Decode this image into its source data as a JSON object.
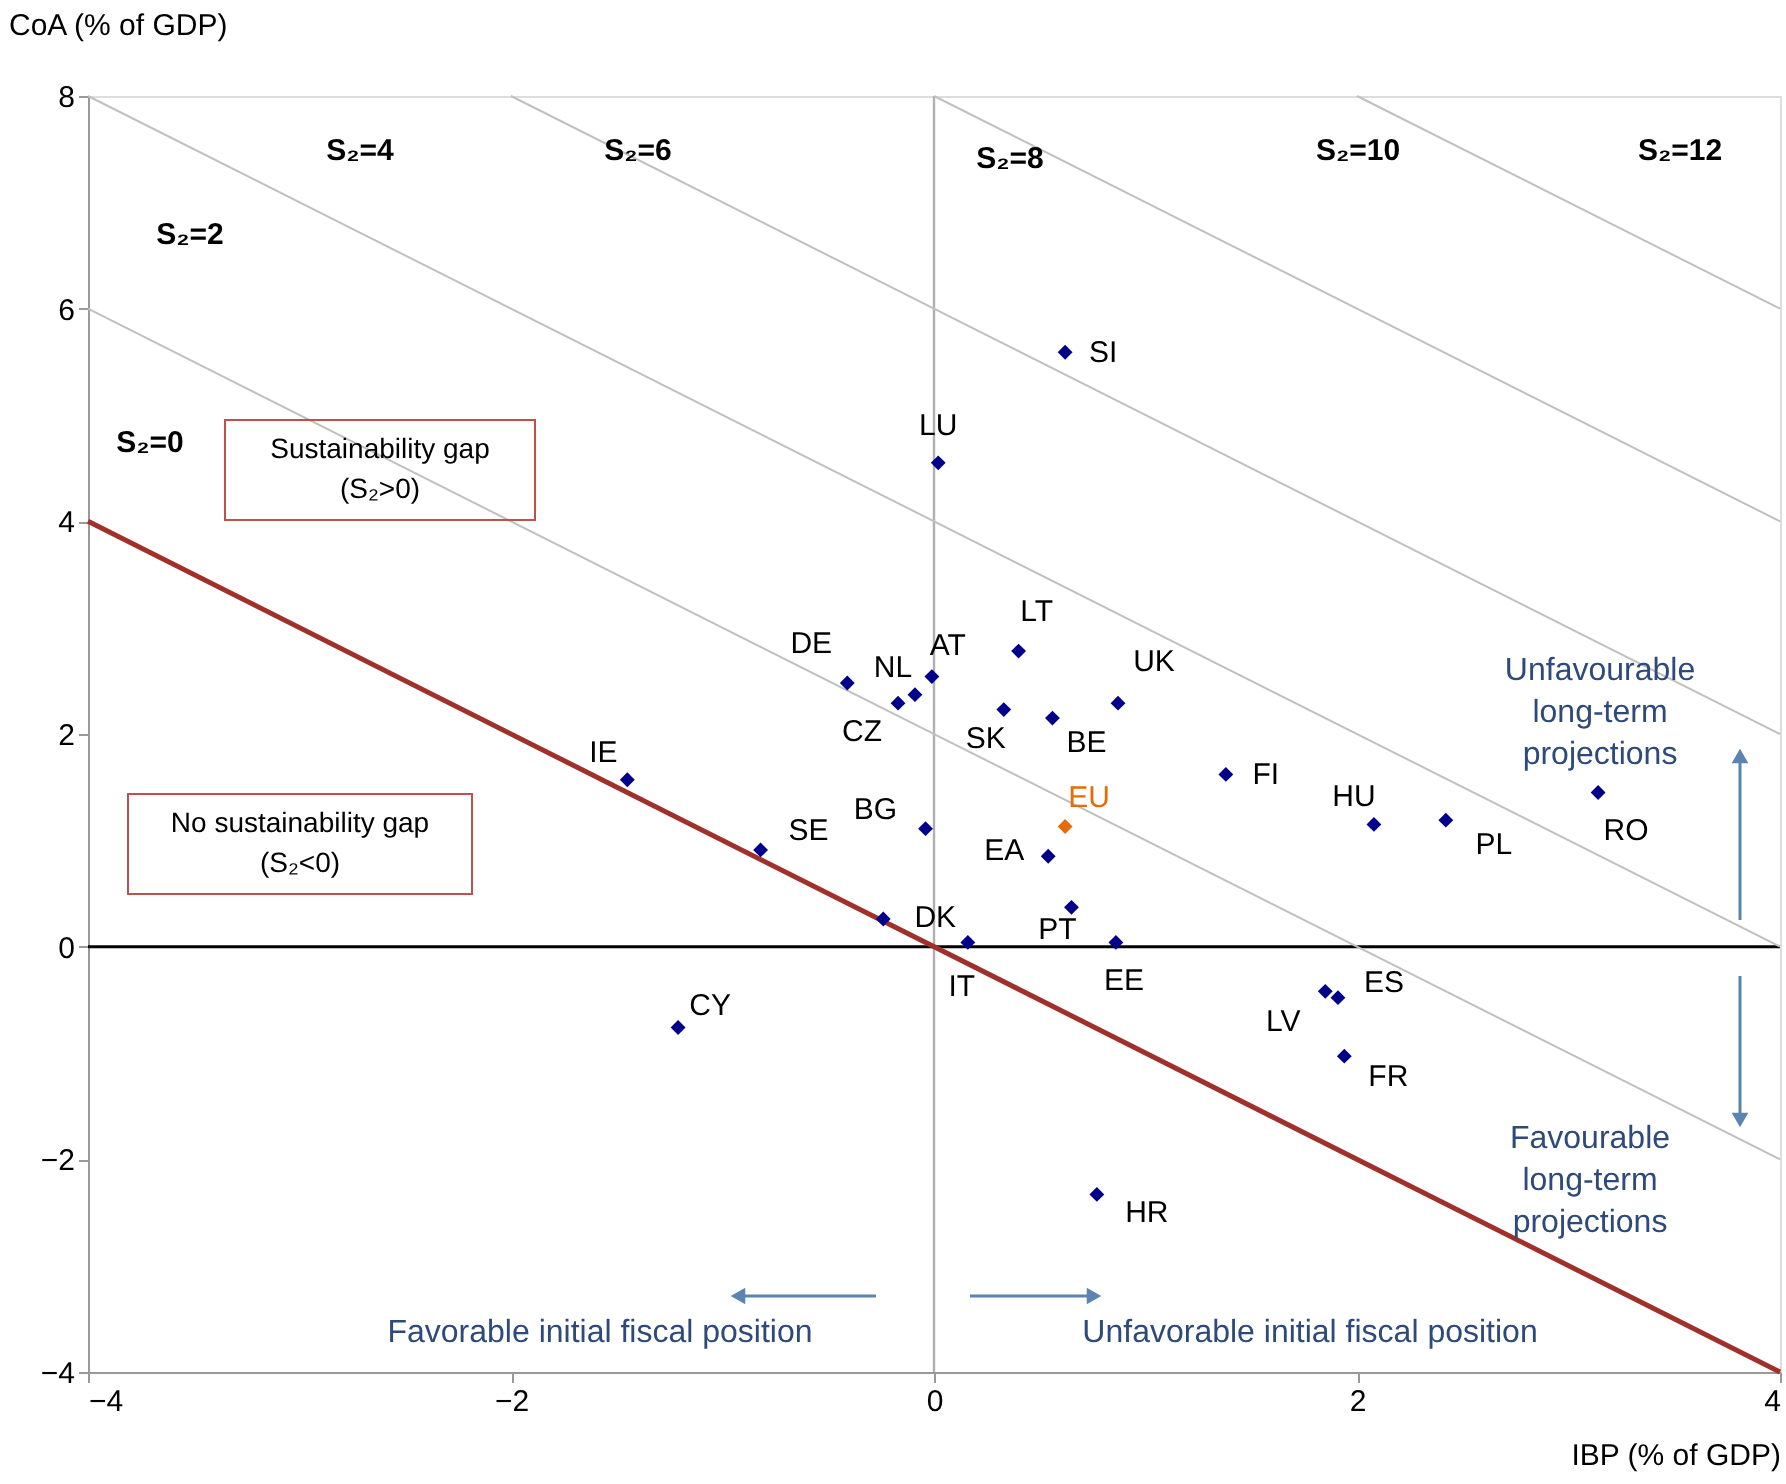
{
  "chart_data": {
    "type": "scatter",
    "xlabel": "IBP (% of GDP)",
    "ylabel": "CoA (% of GDP)",
    "xlim": [
      -4,
      4
    ],
    "ylim": [
      -4,
      8
    ],
    "xticks": [
      -4,
      -2,
      0,
      2,
      4
    ],
    "yticks": [
      -4,
      -2,
      0,
      2,
      4,
      6,
      8
    ],
    "grid": false,
    "marker": "diamond",
    "series": [
      {
        "color": "#00008b",
        "x": [
          0.62,
          0.02,
          0.4,
          -0.41,
          -0.09,
          -0.01,
          -0.17,
          0.33,
          0.56,
          0.87,
          -1.45,
          -0.82,
          -0.04,
          0.54,
          -0.24,
          0.65,
          0.16,
          0.86,
          1.38,
          2.08,
          2.42,
          3.14,
          1.91,
          1.85,
          1.94,
          -1.21,
          0.77
        ],
        "values": [
          5.59,
          4.55,
          2.78,
          2.48,
          2.37,
          2.54,
          2.29,
          2.23,
          2.15,
          2.29,
          1.57,
          0.91,
          1.11,
          0.85,
          0.26,
          0.37,
          0.04,
          0.04,
          1.62,
          1.15,
          1.19,
          1.45,
          -0.48,
          -0.42,
          -1.03,
          -0.76,
          -2.33
        ]
      },
      {
        "type": "scatter",
        "name": "EU",
        "color": "#e46c0a",
        "x": [
          0.62
        ],
        "values": [
          1.13
        ]
      },
      {
        "type": "line",
        "color": "#a0302a",
        "marker": "none",
        "x": [
          -4,
          4
        ],
        "values": [
          4,
          -4
        ]
      },
      {
        "type": "line",
        "color": "#c0c0c0",
        "marker": "none",
        "x": [
          -4,
          4
        ],
        "values": [
          6,
          -2
        ]
      },
      {
        "type": "line",
        "color": "#c0c0c0",
        "marker": "none",
        "x": [
          -4,
          4
        ],
        "values": [
          8,
          0
        ]
      },
      {
        "type": "line",
        "color": "#c0c0c0",
        "marker": "none",
        "x": [
          -2,
          4
        ],
        "values": [
          8,
          2
        ]
      },
      {
        "type": "line",
        "color": "#c0c0c0",
        "marker": "none",
        "x": [
          0,
          4
        ],
        "values": [
          8,
          4
        ]
      },
      {
        "type": "line",
        "color": "#c0c0c0",
        "marker": "none",
        "x": [
          2,
          4
        ],
        "values": [
          8,
          6
        ]
      }
    ],
    "ref_lines": [
      {
        "axis": "x",
        "value": 0,
        "color": "#b0b0b0"
      },
      {
        "axis": "y",
        "value": 0,
        "color": "#000000"
      }
    ],
    "annotations": [
      {
        "text": "SI",
        "x": 0.62,
        "y": 5.59
      },
      {
        "text": "LU",
        "x": 0.02,
        "y": 4.55
      },
      {
        "text": "LT",
        "x": 0.4,
        "y": 2.78
      },
      {
        "text": "DE",
        "x": -0.41,
        "y": 2.48
      },
      {
        "text": "NL",
        "x": -0.09,
        "y": 2.37
      },
      {
        "text": "AT",
        "x": -0.01,
        "y": 2.54
      },
      {
        "text": "CZ",
        "x": -0.17,
        "y": 2.29
      },
      {
        "text": "SK",
        "x": 0.33,
        "y": 2.23
      },
      {
        "text": "BE",
        "x": 0.56,
        "y": 2.15
      },
      {
        "text": "UK",
        "x": 0.87,
        "y": 2.29
      },
      {
        "text": "IE",
        "x": -1.45,
        "y": 1.57
      },
      {
        "text": "SE",
        "x": -0.82,
        "y": 0.91
      },
      {
        "text": "BG",
        "x": -0.04,
        "y": 1.11
      },
      {
        "text": "EA",
        "x": 0.54,
        "y": 0.85
      },
      {
        "text": "DK",
        "x": -0.24,
        "y": 0.26
      },
      {
        "text": "PT",
        "x": 0.65,
        "y": 0.37
      },
      {
        "text": "IT",
        "x": 0.16,
        "y": 0.04
      },
      {
        "text": "EE",
        "x": 0.86,
        "y": 0.04
      },
      {
        "text": "FI",
        "x": 1.38,
        "y": 1.62
      },
      {
        "text": "HU",
        "x": 2.08,
        "y": 1.15
      },
      {
        "text": "PL",
        "x": 2.42,
        "y": 1.19
      },
      {
        "text": "RO",
        "x": 3.14,
        "y": 1.45
      },
      {
        "text": "ES",
        "x": 1.91,
        "y": -0.48
      },
      {
        "text": "LV",
        "x": 1.85,
        "y": -0.42
      },
      {
        "text": "FR",
        "x": 1.94,
        "y": -1.03
      },
      {
        "text": "CY",
        "x": -1.21,
        "y": -0.76
      },
      {
        "text": "HR",
        "x": 0.77,
        "y": -2.33
      },
      "S₂=0",
      "S₂=2",
      "S₂=4",
      "S₂=6",
      "S₂=8",
      "S₂=10",
      "S₂=12",
      "Sustainability gap\n(S₂>0)",
      "No sustainability gap\n(S₂<0)",
      "Unfavourable\nlong-term\nprojections",
      "Favourable\nlong-term\nprojections",
      "Favorable initial fiscal position",
      "Unfavorable initial fiscal position"
    ]
  }
}
